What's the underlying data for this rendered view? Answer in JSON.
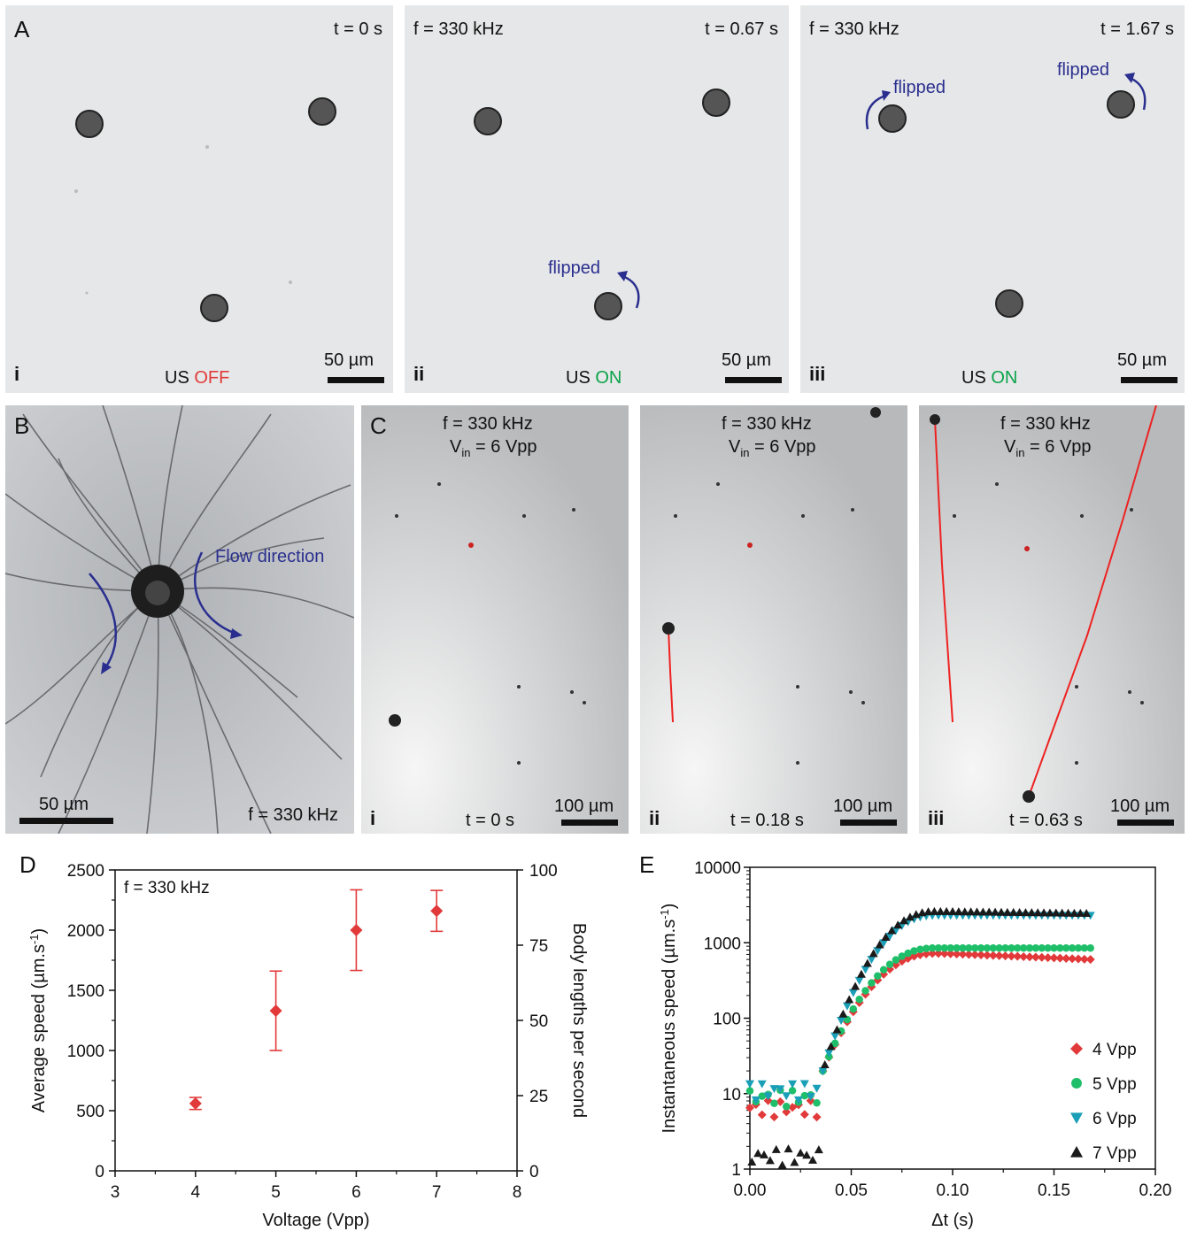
{
  "panel_A": {
    "letter": "A",
    "scale": "50 µm",
    "us_prefix": "US",
    "subpanels": [
      {
        "roman": "i",
        "freq": "",
        "time": "t = 0 s",
        "us_state": "OFF",
        "us_color": "#e23a3a",
        "flipped": []
      },
      {
        "roman": "ii",
        "freq": "f = 330 kHz",
        "time": "t = 0.67 s",
        "us_state": "ON",
        "us_color": "#0aa34a",
        "flipped": [
          "flipped"
        ]
      },
      {
        "roman": "iii",
        "freq": "f = 330 kHz",
        "time": "t = 1.67 s",
        "us_state": "ON",
        "us_color": "#0aa34a",
        "flipped": [
          "flipped",
          "flipped"
        ]
      }
    ]
  },
  "panel_B": {
    "letter": "B",
    "flow": "Flow direction",
    "scale": "50 µm",
    "freq": "f = 330 kHz"
  },
  "panel_C": {
    "letter": "C",
    "scale": "100 µm",
    "subpanels": [
      {
        "roman": "i",
        "freq": "f = 330 kHz",
        "vin_main": "V",
        "vin_sub": "in",
        "vin_rest": " = 6 Vpp",
        "time": "t = 0 s"
      },
      {
        "roman": "ii",
        "freq": "f = 330 kHz",
        "vin_main": "V",
        "vin_sub": "in",
        "vin_rest": " = 6 Vpp",
        "time": "t = 0.18 s"
      },
      {
        "roman": "iii",
        "freq": "f = 330 kHz",
        "vin_main": "V",
        "vin_sub": "in",
        "vin_rest": " = 6 Vpp",
        "time": "t = 0.63 s"
      }
    ]
  },
  "chart_data": [
    {
      "panel": "D",
      "type": "scatter",
      "annotation": "f = 330 kHz",
      "xlabel": "Voltage (Vpp)",
      "ylabel": "Average speed (µm.s",
      "ylabel_sup": "-1",
      "ylabel_end": ")",
      "y2label": "Body lengths per second",
      "xlim": [
        3,
        8
      ],
      "ylim": [
        0,
        2500
      ],
      "y2lim": [
        0,
        100
      ],
      "xticks": [
        "3",
        "4",
        "5",
        "6",
        "7",
        "8"
      ],
      "yticks": [
        "0",
        "500",
        "1000",
        "1500",
        "2000",
        "2500"
      ],
      "y2ticks": [
        "0",
        "25",
        "50",
        "75",
        "100"
      ],
      "color": "#e23a3a",
      "points": [
        {
          "x": 4,
          "y": 560,
          "err": 50
        },
        {
          "x": 5,
          "y": 1330,
          "err": 330
        },
        {
          "x": 6,
          "y": 2000,
          "err": 335
        },
        {
          "x": 7,
          "y": 2160,
          "err": 170
        }
      ]
    },
    {
      "panel": "E",
      "type": "scatter",
      "xlabel": "Δt (s)",
      "ylabel": "Instantaneous speed (µm.s",
      "ylabel_sup": "-1",
      "ylabel_end": ")",
      "xlim": [
        0,
        0.2
      ],
      "ylim": [
        1,
        10000
      ],
      "yscale": "log",
      "xticks": [
        "0.00",
        "0.05",
        "0.10",
        "0.15",
        "0.20"
      ],
      "yticks": [
        "1",
        "10",
        "100",
        "1000",
        "10000"
      ],
      "legend_position": "bottom-right",
      "series": [
        {
          "name": "4 Vpp",
          "marker": "diamond",
          "color": "#e23a3a",
          "plateau_speed": 600,
          "peak_speed": 720,
          "early_speed": 6.5
        },
        {
          "name": "5 Vpp",
          "marker": "circle",
          "color": "#1fbf6a",
          "plateau_speed": 850,
          "peak_speed": 850,
          "early_speed": 9
        },
        {
          "name": "6 Vpp",
          "marker": "triangle-down",
          "color": "#1a9fb8",
          "plateau_speed": 2300,
          "peak_speed": 2300,
          "early_speed": 11
        },
        {
          "name": "7 Vpp",
          "marker": "triangle-up",
          "color": "#1a1a1a",
          "plateau_speed": 2450,
          "peak_speed": 2600,
          "early_speed": 1.5
        }
      ]
    }
  ]
}
